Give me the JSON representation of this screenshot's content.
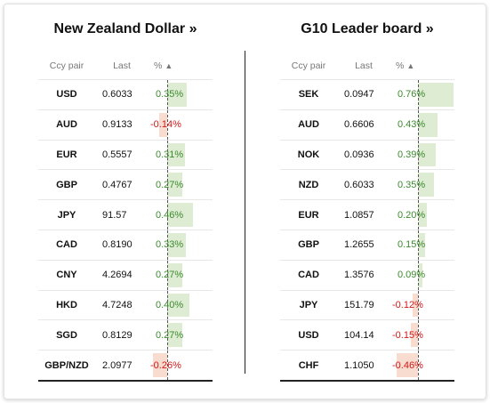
{
  "left_panel": {
    "title": "New Zealand Dollar »",
    "headers": {
      "pair": "Ccy pair",
      "last": "Last",
      "pct": "%"
    },
    "rows": [
      {
        "pair": "USD",
        "last": "0.6033",
        "pct": 0.35,
        "pct_label": "0.35%"
      },
      {
        "pair": "AUD",
        "last": "0.9133",
        "pct": -0.14,
        "pct_label": "-0.14%"
      },
      {
        "pair": "EUR",
        "last": "0.5557",
        "pct": 0.31,
        "pct_label": "0.31%"
      },
      {
        "pair": "GBP",
        "last": "0.4767",
        "pct": 0.27,
        "pct_label": "0.27%"
      },
      {
        "pair": "JPY",
        "last": "91.57",
        "pct": 0.46,
        "pct_label": "0.46%"
      },
      {
        "pair": "CAD",
        "last": "0.8190",
        "pct": 0.33,
        "pct_label": "0.33%"
      },
      {
        "pair": "CNY",
        "last": "4.2694",
        "pct": 0.27,
        "pct_label": "0.27%"
      },
      {
        "pair": "HKD",
        "last": "4.7248",
        "pct": 0.4,
        "pct_label": "0.40%"
      },
      {
        "pair": "SGD",
        "last": "0.8129",
        "pct": 0.27,
        "pct_label": "0.27%"
      },
      {
        "pair": "GBP/NZD",
        "last": "2.0977",
        "pct": -0.26,
        "pct_label": "-0.26%"
      }
    ]
  },
  "right_panel": {
    "title": "G10 Leader board »",
    "headers": {
      "pair": "Ccy pair",
      "last": "Last",
      "pct": "%"
    },
    "rows": [
      {
        "pair": "SEK",
        "last": "0.0947",
        "pct": 0.76,
        "pct_label": "0.76%"
      },
      {
        "pair": "AUD",
        "last": "0.6606",
        "pct": 0.43,
        "pct_label": "0.43%"
      },
      {
        "pair": "NOK",
        "last": "0.0936",
        "pct": 0.39,
        "pct_label": "0.39%"
      },
      {
        "pair": "NZD",
        "last": "0.6033",
        "pct": 0.35,
        "pct_label": "0.35%"
      },
      {
        "pair": "EUR",
        "last": "1.0857",
        "pct": 0.2,
        "pct_label": "0.20%"
      },
      {
        "pair": "GBP",
        "last": "1.2655",
        "pct": 0.15,
        "pct_label": "0.15%"
      },
      {
        "pair": "CAD",
        "last": "1.3576",
        "pct": 0.09,
        "pct_label": "0.09%"
      },
      {
        "pair": "JPY",
        "last": "151.79",
        "pct": -0.12,
        "pct_label": "-0.12%"
      },
      {
        "pair": "USD",
        "last": "104.14",
        "pct": -0.15,
        "pct_label": "-0.15%"
      },
      {
        "pair": "CHF",
        "last": "1.1050",
        "pct": -0.46,
        "pct_label": "-0.46%"
      }
    ]
  },
  "sort_icon": "triangle-up-icon",
  "colors": {
    "positive_text": "#3c8a2e",
    "negative_text": "#d01818",
    "positive_bar": "#ddecd3",
    "negative_bar": "#f8dccf"
  }
}
